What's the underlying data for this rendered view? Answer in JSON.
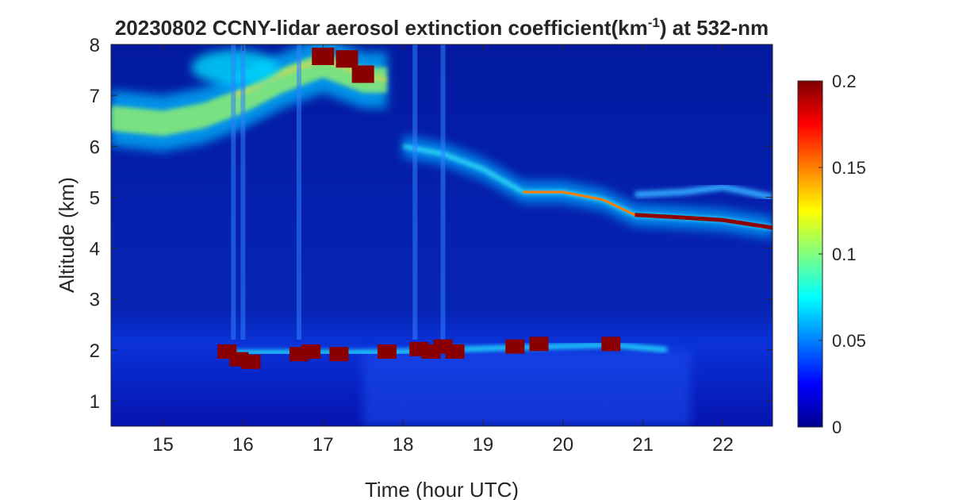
{
  "chart_data": {
    "type": "heatmap",
    "title_prefix": "20230802 CCNY-lidar aerosol extinction coefficient(km",
    "title_superscript": "-1",
    "title_suffix": ") at 532-nm",
    "xlabel": "Time (hour UTC)",
    "ylabel": "Altitude (km)",
    "xlim": [
      14.35,
      22.62
    ],
    "ylim": [
      0.5,
      8.0
    ],
    "xticks": [
      15,
      16,
      17,
      18,
      19,
      20,
      21,
      22
    ],
    "yticks": [
      1,
      2,
      3,
      4,
      5,
      6,
      7,
      8
    ],
    "colorbar": {
      "colormap": "jet",
      "range": [
        0,
        0.2
      ],
      "ticks": [
        0,
        0.05,
        0.1,
        0.15,
        0.2
      ],
      "tick_labels": [
        "0",
        "0.05",
        "0.1",
        "0.15",
        "0.2"
      ]
    },
    "features": {
      "elevated_smoke_layer": {
        "points": [
          [
            14.35,
            6.55
          ],
          [
            15.0,
            6.45
          ],
          [
            15.5,
            6.6
          ],
          [
            16.0,
            6.9
          ],
          [
            16.5,
            7.3
          ],
          [
            17.0,
            7.6
          ],
          [
            17.5,
            7.3
          ],
          [
            17.8,
            7.3
          ]
        ],
        "peak_value": 0.2
      },
      "descending_layer": {
        "points": [
          [
            18.0,
            6.0
          ],
          [
            18.5,
            5.85
          ],
          [
            19.0,
            5.55
          ],
          [
            19.5,
            5.1
          ],
          [
            20.0,
            5.1
          ],
          [
            20.5,
            4.95
          ],
          [
            20.9,
            4.65
          ],
          [
            21.5,
            4.6
          ],
          [
            22.0,
            4.55
          ],
          [
            22.62,
            4.4
          ]
        ],
        "peak_value": 0.2
      },
      "boundary_layer_top": {
        "points": [
          [
            15.8,
            1.95
          ],
          [
            16.8,
            1.95
          ],
          [
            17.8,
            1.95
          ],
          [
            18.5,
            2.0
          ],
          [
            19.5,
            2.05
          ],
          [
            20.6,
            2.1
          ],
          [
            21.3,
            2.0
          ]
        ],
        "peak_value": 0.2
      }
    }
  }
}
